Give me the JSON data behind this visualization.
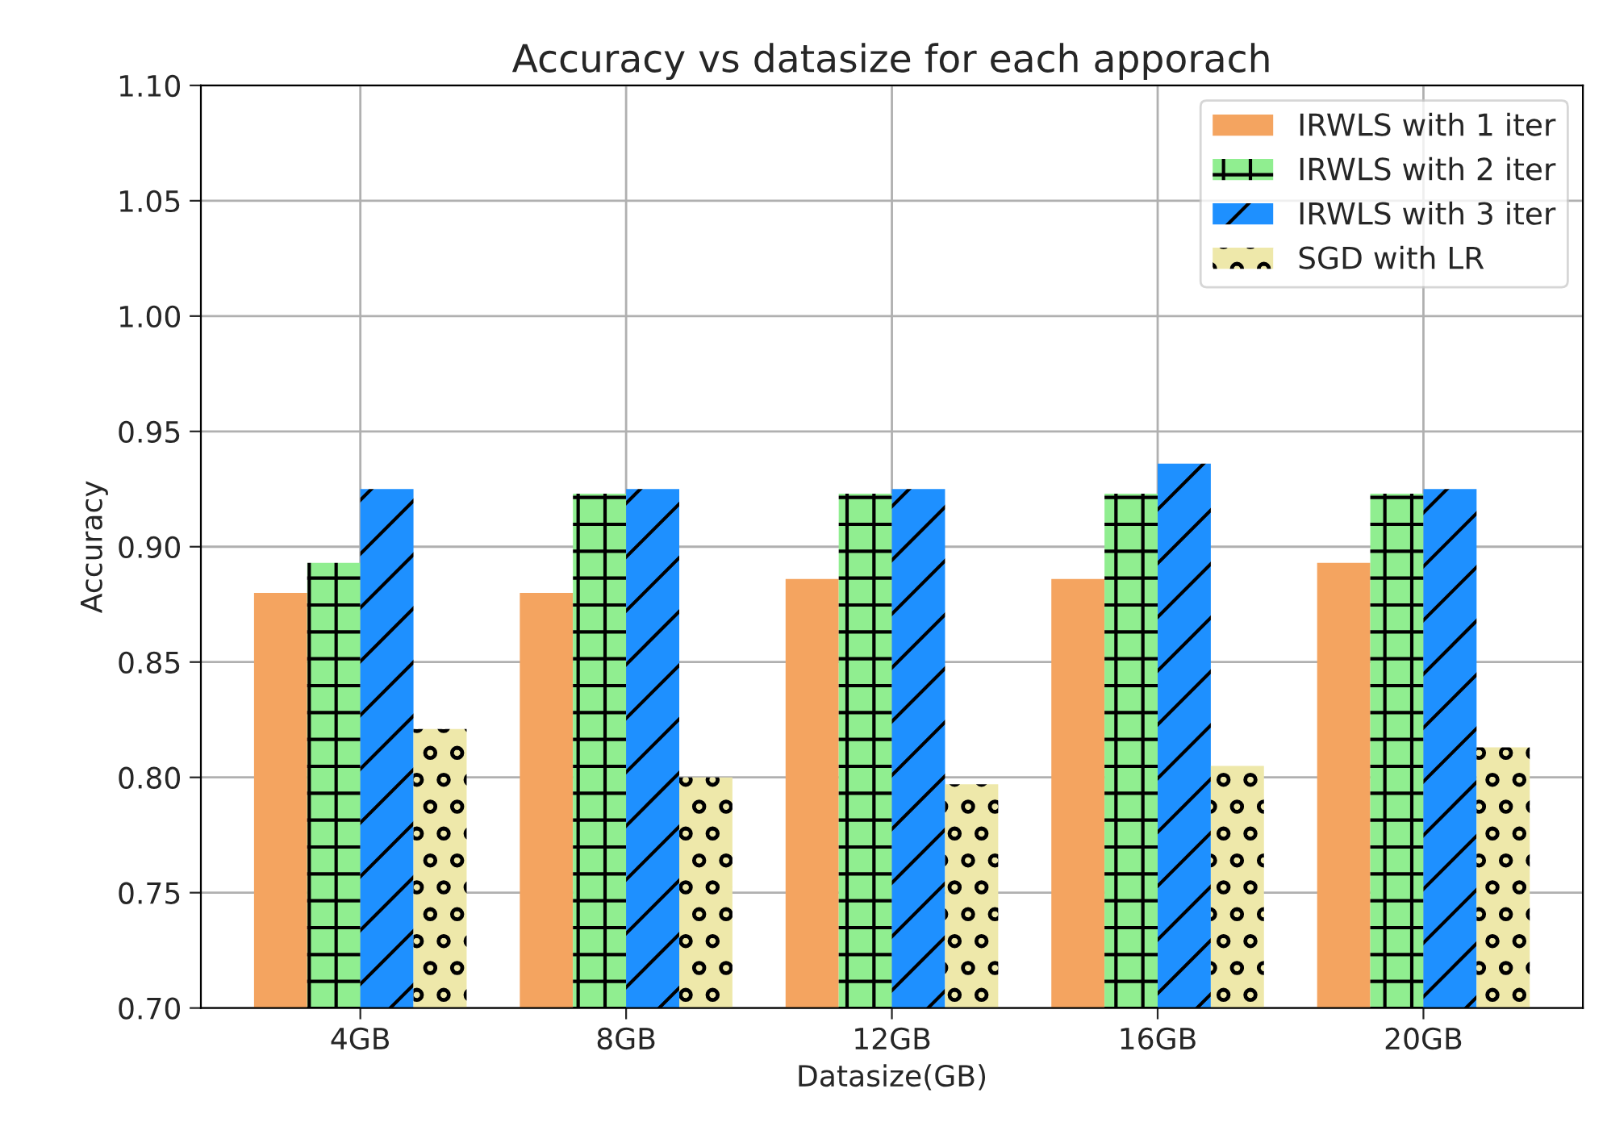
{
  "chart_data": {
    "type": "bar",
    "title": "Accuracy vs datasize for each apporach",
    "xlabel": "Datasize(GB)",
    "ylabel": "Accuracy",
    "categories": [
      "4GB",
      "8GB",
      "12GB",
      "16GB",
      "20GB"
    ],
    "series": [
      {
        "name": "IRWLS with 1 iter",
        "color": "#f4a460",
        "values": [
          0.88,
          0.88,
          0.886,
          0.886,
          0.893
        ]
      },
      {
        "name": "IRWLS with 2 iter",
        "color": "#90ee90",
        "values": [
          0.893,
          0.923,
          0.923,
          0.923,
          0.923
        ]
      },
      {
        "name": "IRWLS with 3 iter",
        "color": "#1e90ff",
        "values": [
          0.925,
          0.925,
          0.925,
          0.936,
          0.925
        ]
      },
      {
        "name": "SGD with LR",
        "color": "#eee8aa",
        "values": [
          0.821,
          0.8,
          0.797,
          0.805,
          0.813
        ]
      }
    ],
    "ylim": [
      0.7,
      1.1
    ],
    "yticks": [
      {
        "value": 0.7,
        "label": "0.70"
      },
      {
        "value": 0.75,
        "label": "0.75"
      },
      {
        "value": 0.8,
        "label": "0.80"
      },
      {
        "value": 0.85,
        "label": "0.85"
      },
      {
        "value": 0.9,
        "label": "0.90"
      },
      {
        "value": 0.95,
        "label": "0.95"
      },
      {
        "value": 1.0,
        "label": "1.00"
      },
      {
        "value": 1.05,
        "label": "1.05"
      },
      {
        "value": 1.1,
        "label": "1.10"
      }
    ],
    "grid": true,
    "legend": "top right"
  }
}
